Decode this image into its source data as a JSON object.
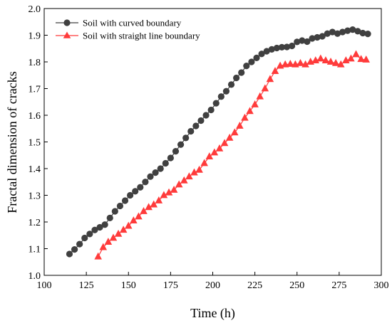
{
  "chart_data": {
    "type": "scatter",
    "title": "",
    "xlabel": "Time (h)",
    "ylabel": "Fractal dimension of cracks",
    "xlim": [
      100,
      300
    ],
    "ylim": [
      1.0,
      2.0
    ],
    "xticks": [
      "100",
      "125",
      "150",
      "175",
      "200",
      "225",
      "250",
      "275",
      "300"
    ],
    "yticks": [
      "1.0",
      "1.1",
      "1.2",
      "1.3",
      "1.4",
      "1.5",
      "1.6",
      "1.7",
      "1.8",
      "1.9",
      "2.0"
    ],
    "grid": false,
    "legend": "top-left",
    "series": [
      {
        "name": "Soil with curved boundary",
        "color": "#404040",
        "marker": "circle",
        "x": [
          115,
          118,
          121,
          124,
          127,
          130,
          133,
          136,
          139,
          142,
          145,
          148,
          151,
          154,
          157,
          160,
          163,
          166,
          169,
          172,
          175,
          178,
          181,
          184,
          187,
          190,
          193,
          196,
          199,
          202,
          205,
          208,
          211,
          214,
          217,
          220,
          223,
          226,
          229,
          232,
          235,
          238,
          241,
          244,
          247,
          250,
          253,
          256,
          259,
          262,
          265,
          268,
          271,
          274,
          277,
          280,
          283,
          286,
          289,
          292
        ],
        "y": [
          1.08,
          1.097,
          1.117,
          1.14,
          1.155,
          1.17,
          1.18,
          1.19,
          1.215,
          1.24,
          1.26,
          1.28,
          1.3,
          1.315,
          1.33,
          1.35,
          1.37,
          1.385,
          1.4,
          1.42,
          1.44,
          1.465,
          1.49,
          1.515,
          1.54,
          1.56,
          1.58,
          1.6,
          1.62,
          1.645,
          1.67,
          1.69,
          1.715,
          1.74,
          1.76,
          1.785,
          1.8,
          1.815,
          1.83,
          1.84,
          1.847,
          1.852,
          1.855,
          1.856,
          1.86,
          1.875,
          1.88,
          1.876,
          1.888,
          1.892,
          1.896,
          1.906,
          1.912,
          1.906,
          1.912,
          1.917,
          1.921,
          1.915,
          1.908,
          1.905
        ]
      },
      {
        "name": "Soil with straight line boundary",
        "color": "#ff3b3b",
        "marker": "triangle",
        "x": [
          132,
          135,
          138,
          141,
          144,
          147,
          150,
          153,
          156,
          159,
          162,
          165,
          168,
          171,
          174,
          177,
          180,
          183,
          186,
          189,
          192,
          195,
          198,
          201,
          204,
          207,
          210,
          213,
          216,
          219,
          222,
          225,
          228,
          231,
          234,
          237,
          240,
          243,
          246,
          249,
          252,
          255,
          258,
          261,
          264,
          267,
          270,
          273,
          276,
          279,
          282,
          285,
          288,
          291
        ],
        "y": [
          1.07,
          1.105,
          1.125,
          1.14,
          1.155,
          1.17,
          1.185,
          1.205,
          1.22,
          1.24,
          1.255,
          1.265,
          1.28,
          1.3,
          1.31,
          1.32,
          1.34,
          1.355,
          1.37,
          1.385,
          1.395,
          1.42,
          1.445,
          1.46,
          1.475,
          1.495,
          1.515,
          1.535,
          1.56,
          1.59,
          1.615,
          1.64,
          1.67,
          1.7,
          1.735,
          1.765,
          1.785,
          1.79,
          1.792,
          1.79,
          1.795,
          1.79,
          1.8,
          1.805,
          1.812,
          1.805,
          1.8,
          1.795,
          1.79,
          1.805,
          1.812,
          1.828,
          1.81,
          1.808
        ]
      }
    ]
  }
}
